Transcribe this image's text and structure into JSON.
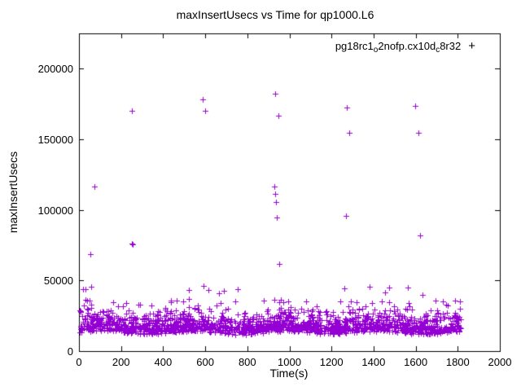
{
  "chart_data": {
    "type": "scatter",
    "title": "maxInsertUsecs vs Time for qp1000.L6",
    "xlabel": "Time(s)",
    "ylabel": "maxInsertUsecs",
    "xlim": [
      0,
      2000
    ],
    "ylim": [
      0,
      225000
    ],
    "x_ticks": [
      0,
      200,
      400,
      600,
      800,
      1000,
      1200,
      1400,
      1600,
      1800,
      2000
    ],
    "y_ticks": [
      0,
      50000,
      100000,
      150000,
      200000
    ],
    "grid": false,
    "legend_position": "top-right",
    "marker": "plus",
    "color": "#9400D3",
    "series_name": "pg18rc1_o2nofp.cx10d_c8r32",
    "legend_marker": "+",
    "legend_parts": [
      {
        "t": "pg18rc1"
      },
      {
        "t": "o",
        "sub": true
      },
      {
        "t": "2nofp.cx10d"
      },
      {
        "t": "c",
        "sub": true
      },
      {
        "t": "8r32"
      }
    ],
    "outliers": [
      [
        54,
        68600
      ],
      [
        57,
        45600
      ],
      [
        74,
        116500
      ],
      [
        251,
        170200
      ],
      [
        250,
        76200
      ],
      [
        256,
        75700
      ],
      [
        588,
        178300
      ],
      [
        601,
        170300
      ],
      [
        590,
        46200
      ],
      [
        932,
        182300
      ],
      [
        948,
        166800
      ],
      [
        930,
        116500
      ],
      [
        933,
        111300
      ],
      [
        936,
        105600
      ],
      [
        940,
        94600
      ],
      [
        952,
        61700
      ],
      [
        1272,
        172500
      ],
      [
        1283,
        154600
      ],
      [
        1270,
        95800
      ],
      [
        1598,
        173700
      ],
      [
        1612,
        154800
      ],
      [
        1620,
        81900
      ]
    ],
    "band": {
      "count": 1700,
      "seed": 42,
      "x_range": [
        2,
        1814
      ],
      "mixture": [
        {
          "p": 0.5,
          "lo": 12800,
          "hi": 19000
        },
        {
          "p": 0.3,
          "lo": 14500,
          "hi": 24000
        },
        {
          "p": 0.15,
          "lo": 18000,
          "hi": 30000
        },
        {
          "p": 0.04,
          "lo": 24000,
          "hi": 36000
        },
        {
          "p": 0.01,
          "lo": 33000,
          "hi": 47000
        }
      ],
      "wave_amp": 1200,
      "wave_period": 70
    }
  }
}
